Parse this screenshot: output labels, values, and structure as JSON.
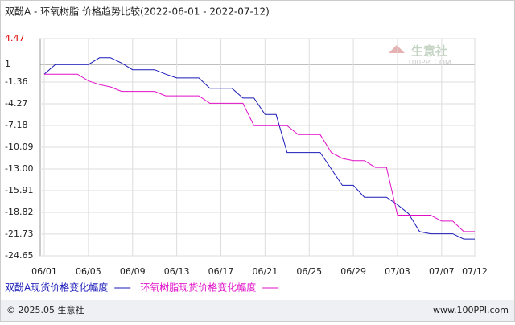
{
  "chart_data": {
    "type": "line",
    "title": "双酚A - 环氧树脂 价格趋势比较(2022-06-01 - 2022-07-12)",
    "categories": [
      "06/01",
      null,
      null,
      null,
      "06/05",
      null,
      null,
      null,
      "06/09",
      null,
      null,
      null,
      "06/13",
      null,
      null,
      null,
      "06/17",
      null,
      null,
      null,
      "06/21",
      null,
      null,
      null,
      "06/25",
      null,
      null,
      null,
      "06/29",
      null,
      null,
      null,
      "07/03",
      null,
      null,
      null,
      "07/07",
      null,
      null,
      "07/12"
    ],
    "series": [
      {
        "name": "双酚A现货价格变化幅度",
        "color": "#1a1ab8",
        "values": [
          -0.3,
          1.0,
          1.0,
          1.0,
          1.0,
          1.9,
          1.9,
          1.2,
          0.3,
          0.3,
          0.3,
          -0.3,
          -0.8,
          -0.8,
          -0.8,
          -2.2,
          -2.2,
          -2.2,
          -3.5,
          -3.5,
          -5.7,
          -5.7,
          -10.8,
          -10.8,
          -10.8,
          -10.8,
          -13.0,
          -15.2,
          -15.2,
          -16.8,
          -16.8,
          -16.8,
          -17.8,
          -19.0,
          -21.4,
          -21.7,
          -21.7,
          -21.7,
          -22.4,
          -22.4
        ]
      },
      {
        "name": "环氧树脂现货价格变化幅度",
        "color": "#e010c8",
        "values": [
          -0.3,
          -0.3,
          -0.3,
          -0.3,
          -1.2,
          -1.7,
          -2.0,
          -2.6,
          -2.6,
          -2.6,
          -2.6,
          -3.2,
          -3.2,
          -3.2,
          -3.2,
          -4.2,
          -4.2,
          -4.2,
          -4.2,
          -7.2,
          -7.2,
          -7.2,
          -7.2,
          -8.4,
          -8.4,
          -8.4,
          -10.8,
          -11.6,
          -11.9,
          -11.9,
          -12.8,
          -12.8,
          -19.2,
          -19.2,
          -19.2,
          -19.2,
          -20.0,
          -20.0,
          -21.4,
          -21.4
        ]
      }
    ],
    "ylim": [
      -24.65,
      4.47
    ],
    "yticks": [
      4.47,
      1,
      -1.36,
      -4.27,
      -7.18,
      -10.09,
      {
        "value": -13,
        "label": "-13.00"
      },
      -15.91,
      -18.82,
      -21.73,
      -24.65
    ],
    "grid": true
  },
  "watermark": {
    "name": "生意社",
    "url": "100PPI.COM"
  },
  "footer": {
    "left": "© 2025.05 生意社",
    "right": "www.100PPI.com"
  }
}
